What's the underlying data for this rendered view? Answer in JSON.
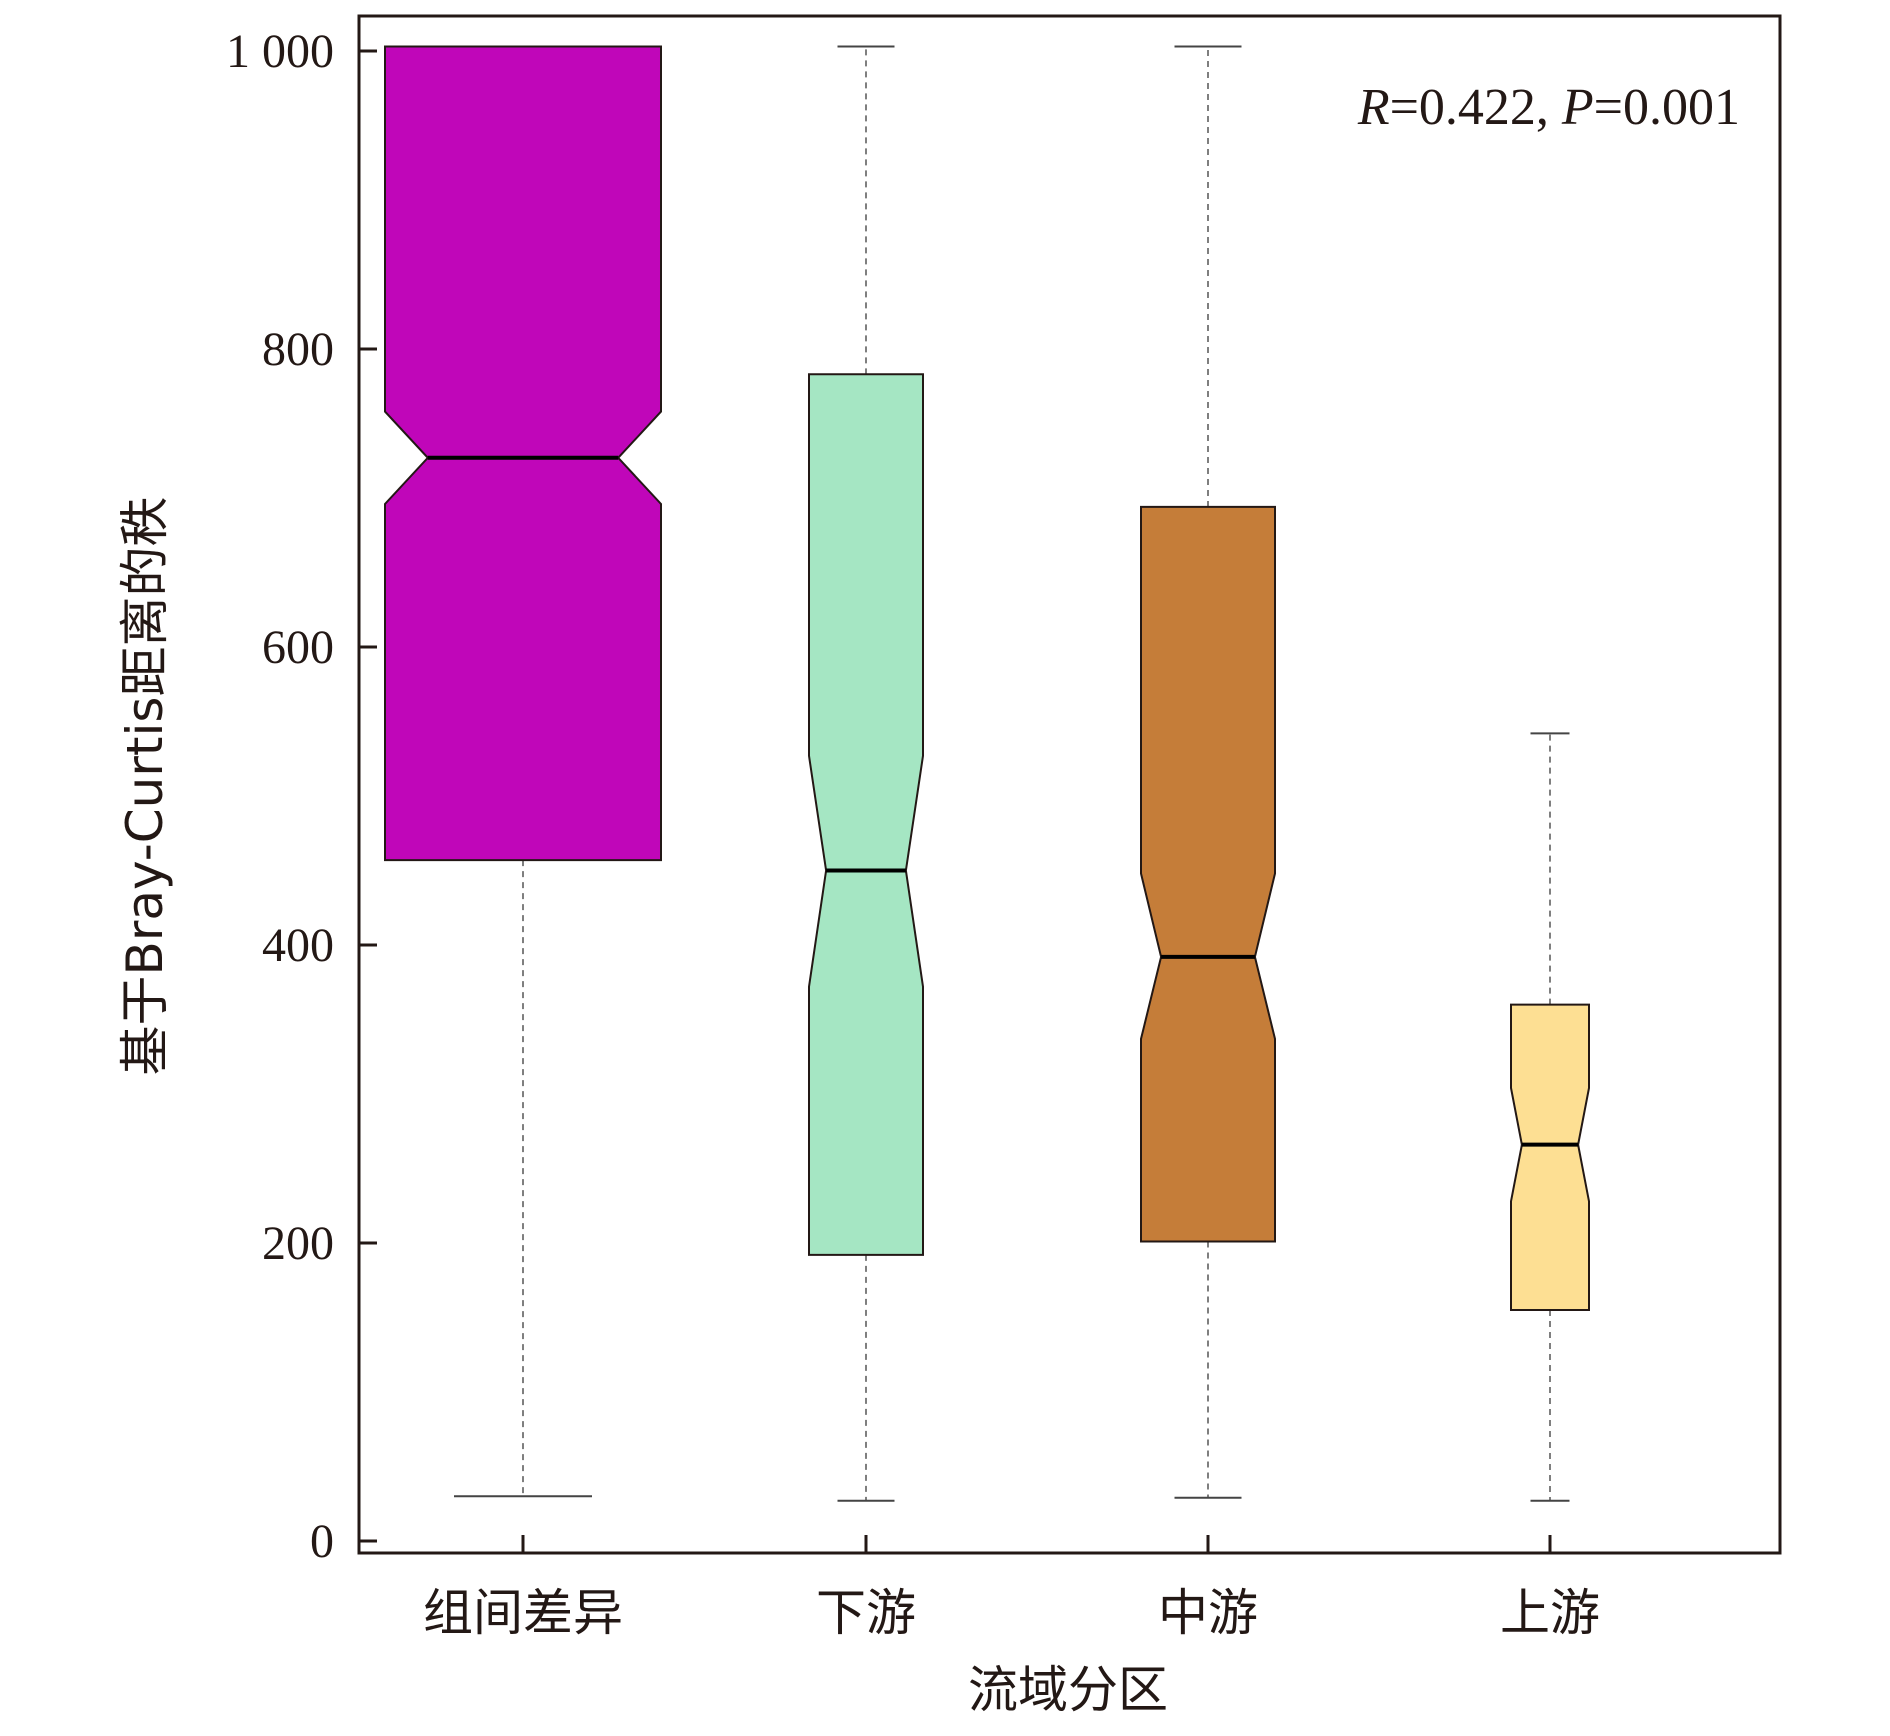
{
  "chart_data": {
    "type": "boxplot",
    "notched": true,
    "xlabel": "流域分区",
    "ylabel": "基于Bray-Curtis距离的秩",
    "ylim": [
      0,
      1000
    ],
    "yticks": [
      0,
      200,
      400,
      600,
      800,
      1000
    ],
    "ytick_labels": [
      "0",
      "200",
      "400",
      "600",
      "800",
      "1 000"
    ],
    "categories": [
      "组间差异",
      "下游",
      "中游",
      "上游"
    ],
    "boxes": [
      {
        "category": "组间差异",
        "whisker_low": 30,
        "q1": 457,
        "median": 727,
        "q3": 1003,
        "whisker_high": 1003,
        "notch_low": 696,
        "notch_high": 758,
        "color": "#C006B9"
      },
      {
        "category": "下游",
        "whisker_low": 27,
        "q1": 192,
        "median": 450,
        "q3": 783,
        "whisker_high": 1003,
        "notch_low": 372,
        "notch_high": 527,
        "color": "#A5E6C3"
      },
      {
        "category": "中游",
        "whisker_low": 29,
        "q1": 201,
        "median": 392,
        "q3": 694,
        "whisker_high": 1003,
        "notch_low": 337,
        "notch_high": 448,
        "color": "#C57D39"
      },
      {
        "category": "上游",
        "whisker_low": 27,
        "q1": 155,
        "median": 266,
        "q3": 360,
        "whisker_high": 542,
        "notch_low": 228,
        "notch_high": 304,
        "color": "#FDDF93"
      }
    ],
    "annotation": {
      "r_symbol": "R",
      "r_value": "=0.422, ",
      "p_symbol": "P",
      "p_value": "=0.001"
    }
  }
}
